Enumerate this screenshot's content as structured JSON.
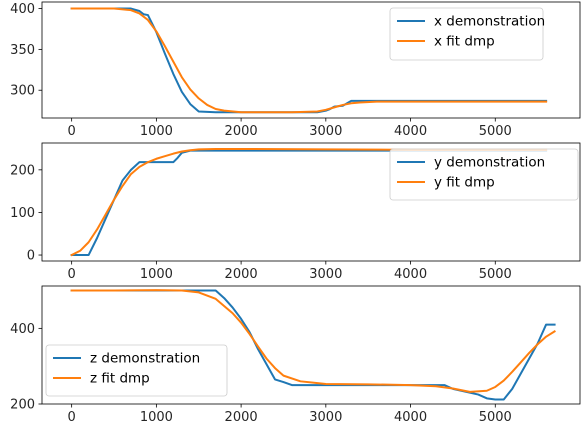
{
  "chart_data": [
    {
      "type": "line",
      "title": "",
      "xlabel": "",
      "ylabel": "",
      "xlim": [
        -350,
        6000
      ],
      "ylim": [
        266,
        408
      ],
      "xticks": [
        0,
        1000,
        2000,
        3000,
        4000,
        5000
      ],
      "yticks": [
        300,
        350,
        400
      ],
      "legend_position": "top-right",
      "series": [
        {
          "name": "x demonstration",
          "color": "#1f77b4",
          "x": [
            0,
            700,
            800,
            850,
            900,
            1000,
            1100,
            1200,
            1300,
            1400,
            1500,
            1700,
            2000,
            2300,
            2600,
            2900,
            3000,
            3050,
            3100,
            3200,
            3300,
            3500,
            3800,
            4000,
            4500,
            5000,
            5600
          ],
          "y": [
            400,
            400,
            397,
            393,
            392,
            371,
            345,
            320,
            298,
            283,
            274,
            273,
            273,
            273,
            273,
            273,
            275,
            277,
            280,
            281,
            287,
            287,
            287,
            287,
            287,
            287,
            287
          ]
        },
        {
          "name": "x fit dmp",
          "color": "#ff7f0e",
          "x": [
            0,
            500,
            700,
            800,
            900,
            1000,
            1100,
            1200,
            1300,
            1400,
            1500,
            1600,
            1700,
            1800,
            2000,
            2300,
            2600,
            2900,
            3000,
            3100,
            3200,
            3300,
            3400,
            3600,
            3800,
            4000,
            4500,
            5000,
            5600
          ],
          "y": [
            400,
            400,
            398,
            394,
            386,
            372,
            354,
            335,
            316,
            301,
            290,
            282,
            277,
            275,
            273,
            273,
            273,
            274,
            276,
            279,
            282,
            284,
            285,
            286,
            286,
            286,
            286,
            286,
            286
          ]
        }
      ]
    },
    {
      "type": "line",
      "title": "",
      "xlabel": "",
      "ylabel": "",
      "xlim": [
        -350,
        6000
      ],
      "ylim": [
        -14,
        263
      ],
      "xticks": [
        0,
        1000,
        2000,
        3000,
        4000,
        5000
      ],
      "yticks": [
        0,
        100,
        200
      ],
      "legend_position": "top-right",
      "series": [
        {
          "name": "y demonstration",
          "color": "#1f77b4",
          "x": [
            0,
            200,
            300,
            400,
            500,
            600,
            700,
            800,
            1000,
            1200,
            1250,
            1300,
            1400,
            1500,
            2000,
            3000,
            4000,
            5000,
            5600
          ],
          "y": [
            0,
            0,
            40,
            85,
            130,
            175,
            200,
            218,
            218,
            218,
            228,
            240,
            245,
            245,
            245,
            245,
            245,
            245,
            245
          ]
        },
        {
          "name": "y fit dmp",
          "color": "#ff7f0e",
          "x": [
            0,
            100,
            200,
            300,
            400,
            500,
            600,
            700,
            800,
            900,
            1000,
            1100,
            1200,
            1300,
            1400,
            1500,
            1700,
            2000,
            3000,
            4000,
            5000,
            5600
          ],
          "y": [
            0,
            10,
            30,
            60,
            95,
            130,
            162,
            190,
            207,
            218,
            226,
            232,
            238,
            243,
            246,
            248,
            249,
            249,
            248,
            247,
            247,
            247
          ]
        }
      ]
    },
    {
      "type": "line",
      "title": "",
      "xlabel": "",
      "ylabel": "",
      "xlim": [
        -350,
        6000
      ],
      "ylim": [
        200,
        512
      ],
      "xticks": [
        0,
        1000,
        2000,
        3000,
        4000,
        5000
      ],
      "yticks": [
        200,
        400
      ],
      "legend_position": "bottom-left",
      "series": [
        {
          "name": "z demonstration",
          "color": "#1f77b4",
          "x": [
            0,
            1000,
            1700,
            1800,
            1900,
            2000,
            2100,
            2200,
            2300,
            2400,
            2500,
            2600,
            3000,
            3500,
            4000,
            4400,
            4500,
            4600,
            4700,
            4800,
            4900,
            5000,
            5100,
            5200,
            5300,
            5400,
            5500,
            5600,
            5700
          ],
          "y": [
            500,
            500,
            500,
            480,
            455,
            425,
            390,
            345,
            305,
            265,
            258,
            250,
            250,
            250,
            250,
            250,
            240,
            235,
            230,
            225,
            215,
            212,
            212,
            240,
            280,
            320,
            360,
            410,
            410
          ]
        },
        {
          "name": "z fit dmp",
          "color": "#ff7f0e",
          "x": [
            0,
            500,
            1000,
            1300,
            1500,
            1700,
            1900,
            2000,
            2100,
            2200,
            2300,
            2400,
            2500,
            2700,
            3000,
            3500,
            4000,
            4300,
            4500,
            4700,
            4900,
            5000,
            5100,
            5200,
            5300,
            5400,
            5500,
            5600,
            5700
          ],
          "y": [
            500,
            500,
            501,
            500,
            495,
            478,
            440,
            415,
            385,
            352,
            320,
            295,
            275,
            260,
            253,
            252,
            250,
            247,
            241,
            232,
            235,
            245,
            262,
            285,
            310,
            335,
            358,
            378,
            392
          ]
        }
      ]
    }
  ]
}
